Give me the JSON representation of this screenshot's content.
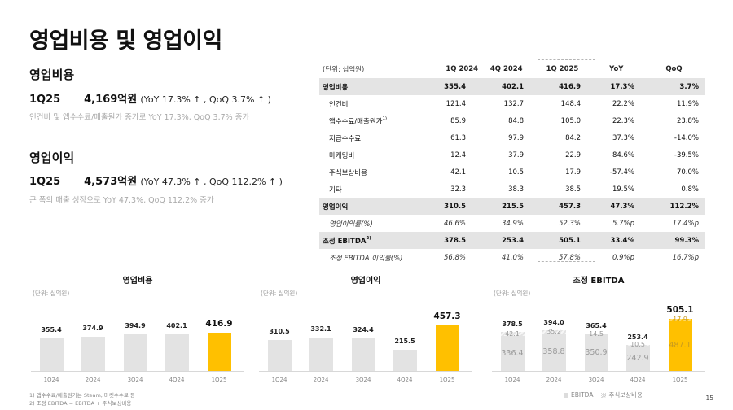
{
  "page": {
    "title": "영업비용 및 영업이익",
    "page_number": "15"
  },
  "opex": {
    "heading": "영업비용",
    "quarter": "1Q25",
    "value": "4,169억원",
    "delta": "(YoY 17.3% ↑ , QoQ 3.7% ↑ )",
    "note": "인건비 및 앱수수료/매출원가 증가로 YoY 17.3%, QoQ 3.7% 증가"
  },
  "op_income": {
    "heading": "영업이익",
    "quarter": "1Q25",
    "value": "4,573억원",
    "delta": "(YoY 47.3% ↑ , QoQ 112.2% ↑ )",
    "note": "큰 폭의 매출 성장으로 YoY 47.3%, QoQ 112.2% 증가"
  },
  "table": {
    "unit": "(단위: 십억원)",
    "headers": [
      "1Q 2024",
      "4Q 2024",
      "1Q 2025",
      "YoY",
      "QoQ"
    ],
    "rows": [
      {
        "label": "영업비용",
        "sup": "",
        "type": "sum",
        "values": [
          "355.4",
          "402.1",
          "416.9",
          "17.3%",
          "3.7%"
        ]
      },
      {
        "label": "인건비",
        "sup": "",
        "type": "sub",
        "values": [
          "121.4",
          "132.7",
          "148.4",
          "22.2%",
          "11.9%"
        ]
      },
      {
        "label": "앱수수료/매출원가",
        "sup": "1)",
        "type": "sub",
        "values": [
          "85.9",
          "84.8",
          "105.0",
          "22.3%",
          "23.8%"
        ]
      },
      {
        "label": "지급수수료",
        "sup": "",
        "type": "sub",
        "values": [
          "61.3",
          "97.9",
          "84.2",
          "37.3%",
          "-14.0%"
        ]
      },
      {
        "label": "마케팅비",
        "sup": "",
        "type": "sub",
        "values": [
          "12.4",
          "37.9",
          "22.9",
          "84.6%",
          "-39.5%"
        ]
      },
      {
        "label": "주식보상비용",
        "sup": "",
        "type": "sub",
        "values": [
          "42.1",
          "10.5",
          "17.9",
          "-57.4%",
          "70.0%"
        ]
      },
      {
        "label": "기타",
        "sup": "",
        "type": "sub",
        "values": [
          "32.3",
          "38.3",
          "38.5",
          "19.5%",
          "0.8%"
        ]
      },
      {
        "label": "영업이익",
        "sup": "",
        "type": "sum",
        "values": [
          "310.5",
          "215.5",
          "457.3",
          "47.3%",
          "112.2%"
        ]
      },
      {
        "label": "영업이익률(%)",
        "sup": "",
        "type": "it",
        "values": [
          "46.6%",
          "34.9%",
          "52.3%",
          "5.7%p",
          "17.4%p"
        ]
      },
      {
        "label": "조정 EBITDA",
        "sup": "2)",
        "type": "sum",
        "values": [
          "378.5",
          "253.4",
          "505.1",
          "33.4%",
          "99.3%"
        ]
      },
      {
        "label": "조정 EBITDA 이익률(%)",
        "sup": "",
        "type": "it",
        "values": [
          "56.8%",
          "41.0%",
          "57.8%",
          "0.9%p",
          "16.7%p"
        ]
      }
    ]
  },
  "footnotes": [
    "1) 앱수수료/매출원가는 Steam, 마켓수수료 등",
    "2) 조정 EBITDA = EBITDA + 주식보상비용"
  ],
  "legend": [
    "EBITDA",
    "주식보상비용"
  ],
  "colors": {
    "highlight": "#ffc000",
    "bar": "#e3e3e3",
    "sum_row": "#e4e4e4"
  },
  "chart_data": [
    {
      "type": "bar",
      "title": "영업비용",
      "unit": "(단위: 십억원)",
      "categories": [
        "1Q24",
        "2Q24",
        "3Q24",
        "4Q24",
        "1Q25"
      ],
      "values": [
        355.4,
        374.9,
        394.9,
        402.1,
        416.9
      ],
      "highlight_index": 4,
      "xlabel": "",
      "ylabel": "",
      "grid": false
    },
    {
      "type": "bar",
      "title": "영업이익",
      "unit": "(단위: 십억원)",
      "categories": [
        "1Q24",
        "2Q24",
        "3Q24",
        "4Q24",
        "1Q25"
      ],
      "values": [
        310.5,
        332.1,
        324.4,
        215.5,
        457.3
      ],
      "highlight_index": 4,
      "xlabel": "",
      "ylabel": "",
      "grid": false
    },
    {
      "type": "bar",
      "stacked": true,
      "title": "조정 EBITDA",
      "unit": "(단위: 십억원)",
      "categories": [
        "1Q24",
        "2Q24",
        "3Q24",
        "4Q24",
        "1Q25"
      ],
      "series": [
        {
          "name": "EBITDA",
          "values": [
            336.4,
            358.8,
            350.9,
            242.9,
            487.1
          ]
        },
        {
          "name": "주식보상비용",
          "values": [
            42.1,
            35.2,
            14.5,
            10.5,
            17.9
          ]
        }
      ],
      "totals": [
        378.5,
        394.0,
        365.4,
        253.4,
        505.1
      ],
      "highlight_index": 4,
      "legend_position": "bottom",
      "xlabel": "",
      "ylabel": "",
      "grid": false
    }
  ]
}
